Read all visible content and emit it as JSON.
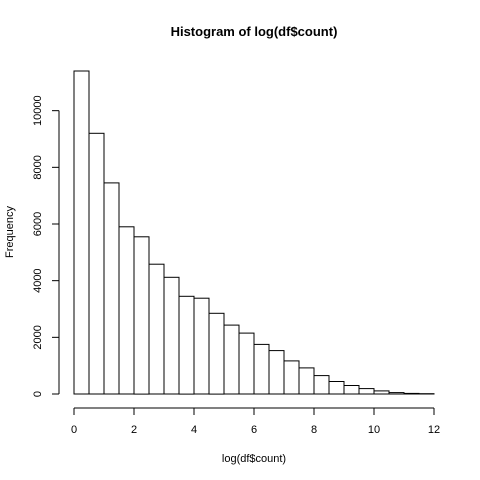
{
  "chart_data": {
    "type": "bar",
    "title": "Histogram of log(df$count)",
    "xlabel": "log(df$count)",
    "ylabel": "Frequency",
    "bin_width": 0.5,
    "bins_start": [
      0,
      0.5,
      1,
      1.5,
      2,
      2.5,
      3,
      3.5,
      4,
      4.5,
      5,
      5.5,
      6,
      6.5,
      7,
      7.5,
      8,
      8.5,
      9,
      9.5,
      10,
      10.5,
      11,
      11.5
    ],
    "values": [
      11400,
      9200,
      7450,
      5900,
      5550,
      4580,
      4120,
      3450,
      3380,
      2850,
      2430,
      2150,
      1750,
      1530,
      1170,
      920,
      650,
      440,
      300,
      190,
      110,
      50,
      20,
      10
    ],
    "xlim": [
      0,
      12
    ],
    "ylim": [
      0,
      11400
    ],
    "x_ticks": [
      0,
      2,
      4,
      6,
      8,
      10,
      12
    ],
    "y_ticks": [
      0,
      2000,
      4000,
      6000,
      8000,
      10000
    ],
    "grid": false,
    "legend": "none"
  }
}
